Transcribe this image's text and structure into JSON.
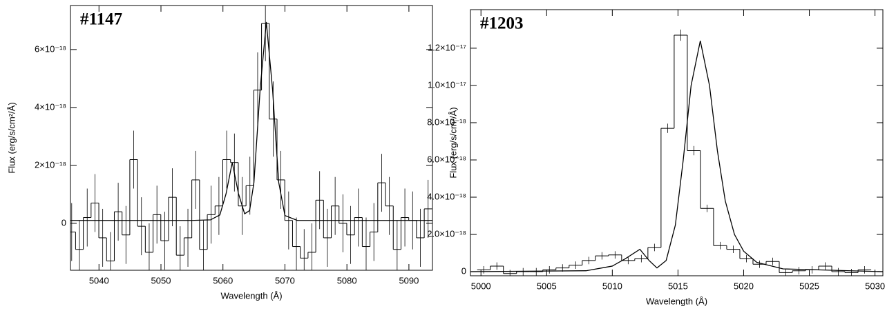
{
  "chart_data": [
    {
      "type": "step",
      "label": "#1147",
      "xlabel": "Wavelength (Å)",
      "ylabel": "Flux (erg/s/cm²/Å)",
      "xlim": [
        5035.4,
        5093.8
      ],
      "ylim": [
        -1.62e-18,
        7.52e-18
      ],
      "xticks": [
        5040,
        5050,
        5060,
        5070,
        5080,
        5090
      ],
      "yticks": [
        0,
        {
          "value": 2e-18,
          "label": "2×10⁻¹⁸"
        },
        {
          "value": 4e-18,
          "label": "4×10⁻¹⁸"
        },
        {
          "value": 6e-18,
          "label": "6×10⁻¹⁸"
        }
      ],
      "color": "#000000",
      "x": [
        5035.6,
        5036.85,
        5038.1,
        5039.35,
        5040.6,
        5041.85,
        5043.1,
        5044.35,
        5045.6,
        5046.85,
        5048.1,
        5049.35,
        5050.6,
        5051.85,
        5053.1,
        5054.35,
        5055.6,
        5056.85,
        5058.1,
        5059.35,
        5060.6,
        5061.85,
        5063.1,
        5064.35,
        5065.6,
        5066.85,
        5068.1,
        5069.35,
        5070.6,
        5071.85,
        5073.1,
        5074.35,
        5075.6,
        5076.85,
        5078.1,
        5079.35,
        5080.6,
        5081.85,
        5083.1,
        5084.35,
        5085.6,
        5086.85,
        5088.1,
        5089.35,
        5090.6,
        5091.85,
        5093.1
      ],
      "values": [
        -3e-19,
        -9e-19,
        2e-19,
        7e-19,
        -5e-19,
        -1.3e-18,
        4e-19,
        -4e-19,
        2.2e-18,
        -1e-19,
        -1e-18,
        3e-19,
        -6e-19,
        9e-19,
        -1.1e-18,
        -5e-19,
        1.5e-18,
        -9e-19,
        3e-19,
        6e-19,
        2.2e-18,
        2.1e-18,
        6e-19,
        1.3e-18,
        4.6e-18,
        6.9e-18,
        3.6e-18,
        1.5e-18,
        1e-19,
        -8e-19,
        -1.2e-18,
        -1e-18,
        8e-19,
        -5e-19,
        6e-19,
        0.0,
        -4e-19,
        2e-19,
        -8e-19,
        -3e-19,
        1.4e-18,
        6e-19,
        -9e-19,
        2e-19,
        1e-19,
        -5e-19,
        5e-19
      ],
      "errors": [
        1e-18,
        1e-18,
        1e-18,
        1e-18,
        1e-18,
        1e-18,
        1e-18,
        1e-18,
        1e-18,
        1e-18,
        1e-18,
        1e-18,
        1e-18,
        1e-18,
        1e-18,
        1e-18,
        1e-18,
        1e-18,
        1e-18,
        1e-18,
        1e-18,
        1e-18,
        1e-18,
        1e-18,
        1.3e-18,
        1.3e-18,
        1.3e-18,
        1e-18,
        1e-18,
        1e-18,
        1e-18,
        1e-18,
        1e-18,
        1e-18,
        1e-18,
        1e-18,
        1e-18,
        1e-18,
        1e-18,
        1e-18,
        1e-18,
        1e-18,
        1e-18,
        1e-18,
        1e-18,
        1e-18,
        1e-18
      ],
      "fit": {
        "x": [
          5035.4,
          5055,
          5058,
          5059.5,
          5060.5,
          5061.5,
          5062.5,
          5063.5,
          5064.3,
          5065,
          5066,
          5067,
          5068,
          5069,
          5070,
          5072,
          5093.8
        ],
        "values": [
          1e-19,
          1e-19,
          1.2e-19,
          2.9e-19,
          1.02e-18,
          2.1e-18,
          1.03e-18,
          3.3e-19,
          4.4e-19,
          1.41e-18,
          4.63e-18,
          6.95e-18,
          4.63e-18,
          1.41e-18,
          2.7e-19,
          1e-19,
          1e-19
        ]
      }
    },
    {
      "type": "step",
      "label": "#1203",
      "xlabel": "Wavelength (Å)",
      "ylabel": "Flux (erg/s/cm²/Å)",
      "xlim": [
        4999.2,
        5030.6
      ],
      "ylim": [
        -2.2e-19,
        1.407e-17
      ],
      "xticks": [
        5000,
        5005,
        5010,
        5015,
        5020,
        5025,
        5030
      ],
      "yticks": [
        0,
        {
          "value": 2e-18,
          "label": "2.0×10⁻¹⁸"
        },
        {
          "value": 4e-18,
          "label": "4.0×10⁻¹⁸"
        },
        {
          "value": 6e-18,
          "label": "6.0×10⁻¹⁸"
        },
        {
          "value": 8e-18,
          "label": "8.0×10⁻¹⁸"
        },
        {
          "value": 1e-17,
          "label": "1.0×10⁻¹⁷"
        },
        {
          "value": 1.2e-17,
          "label": "1.2×10⁻¹⁷"
        }
      ],
      "color": "#000000",
      "x": [
        5000.21,
        5001.21,
        5002.21,
        5003.21,
        5004.21,
        5005.21,
        5006.21,
        5007.21,
        5008.21,
        5009.21,
        5010.21,
        5011.21,
        5012.21,
        5013.21,
        5014.21,
        5015.21,
        5016.21,
        5017.21,
        5018.21,
        5019.21,
        5020.21,
        5021.21,
        5022.21,
        5023.21,
        5024.21,
        5025.21,
        5026.21,
        5027.21,
        5028.21,
        5029.21
      ],
      "values": [
        1e-19,
        3e-19,
        -1e-19,
        0.0,
        0.0,
        1e-19,
        2e-19,
        3.5e-19,
        6e-19,
        8.5e-19,
        9e-19,
        6e-19,
        7e-19,
        1.3e-18,
        7.7e-18,
        1.27e-17,
        6.5e-18,
        3.4e-18,
        1.4e-18,
        1.2e-18,
        7e-19,
        4e-19,
        5.5e-19,
        -5e-20,
        5e-20,
        1e-19,
        3e-19,
        0.0,
        -5e-20,
        1e-19
      ],
      "errors": [
        2e-19,
        2e-19,
        2e-19,
        2e-19,
        2e-19,
        2e-19,
        2e-19,
        2e-19,
        2e-19,
        2e-19,
        2e-19,
        2e-19,
        2e-19,
        2e-19,
        2.5e-19,
        3e-19,
        2.5e-19,
        2e-19,
        2e-19,
        2e-19,
        2e-19,
        2e-19,
        2e-19,
        2e-19,
        2e-19,
        2e-19,
        2e-19,
        2e-19,
        2e-19,
        2e-19
      ],
      "fit": {
        "x": [
          4999.2,
          5008,
          5010,
          5011,
          5012.1,
          5012.8,
          5013.4,
          5014.1,
          5014.8,
          5015.4,
          5016,
          5016.7,
          5017.4,
          5018,
          5018.6,
          5019.3,
          5020,
          5021,
          5023,
          5030.6
        ],
        "values": [
          0.0,
          5e-20,
          3e-19,
          7e-19,
          1.2e-18,
          6e-19,
          2e-19,
          6e-19,
          2.5e-18,
          6e-18,
          1e-17,
          1.24e-17,
          1e-17,
          6.5e-18,
          3.8e-18,
          2e-18,
          1.1e-18,
          5e-19,
          1.5e-19,
          0.0
        ]
      }
    }
  ]
}
